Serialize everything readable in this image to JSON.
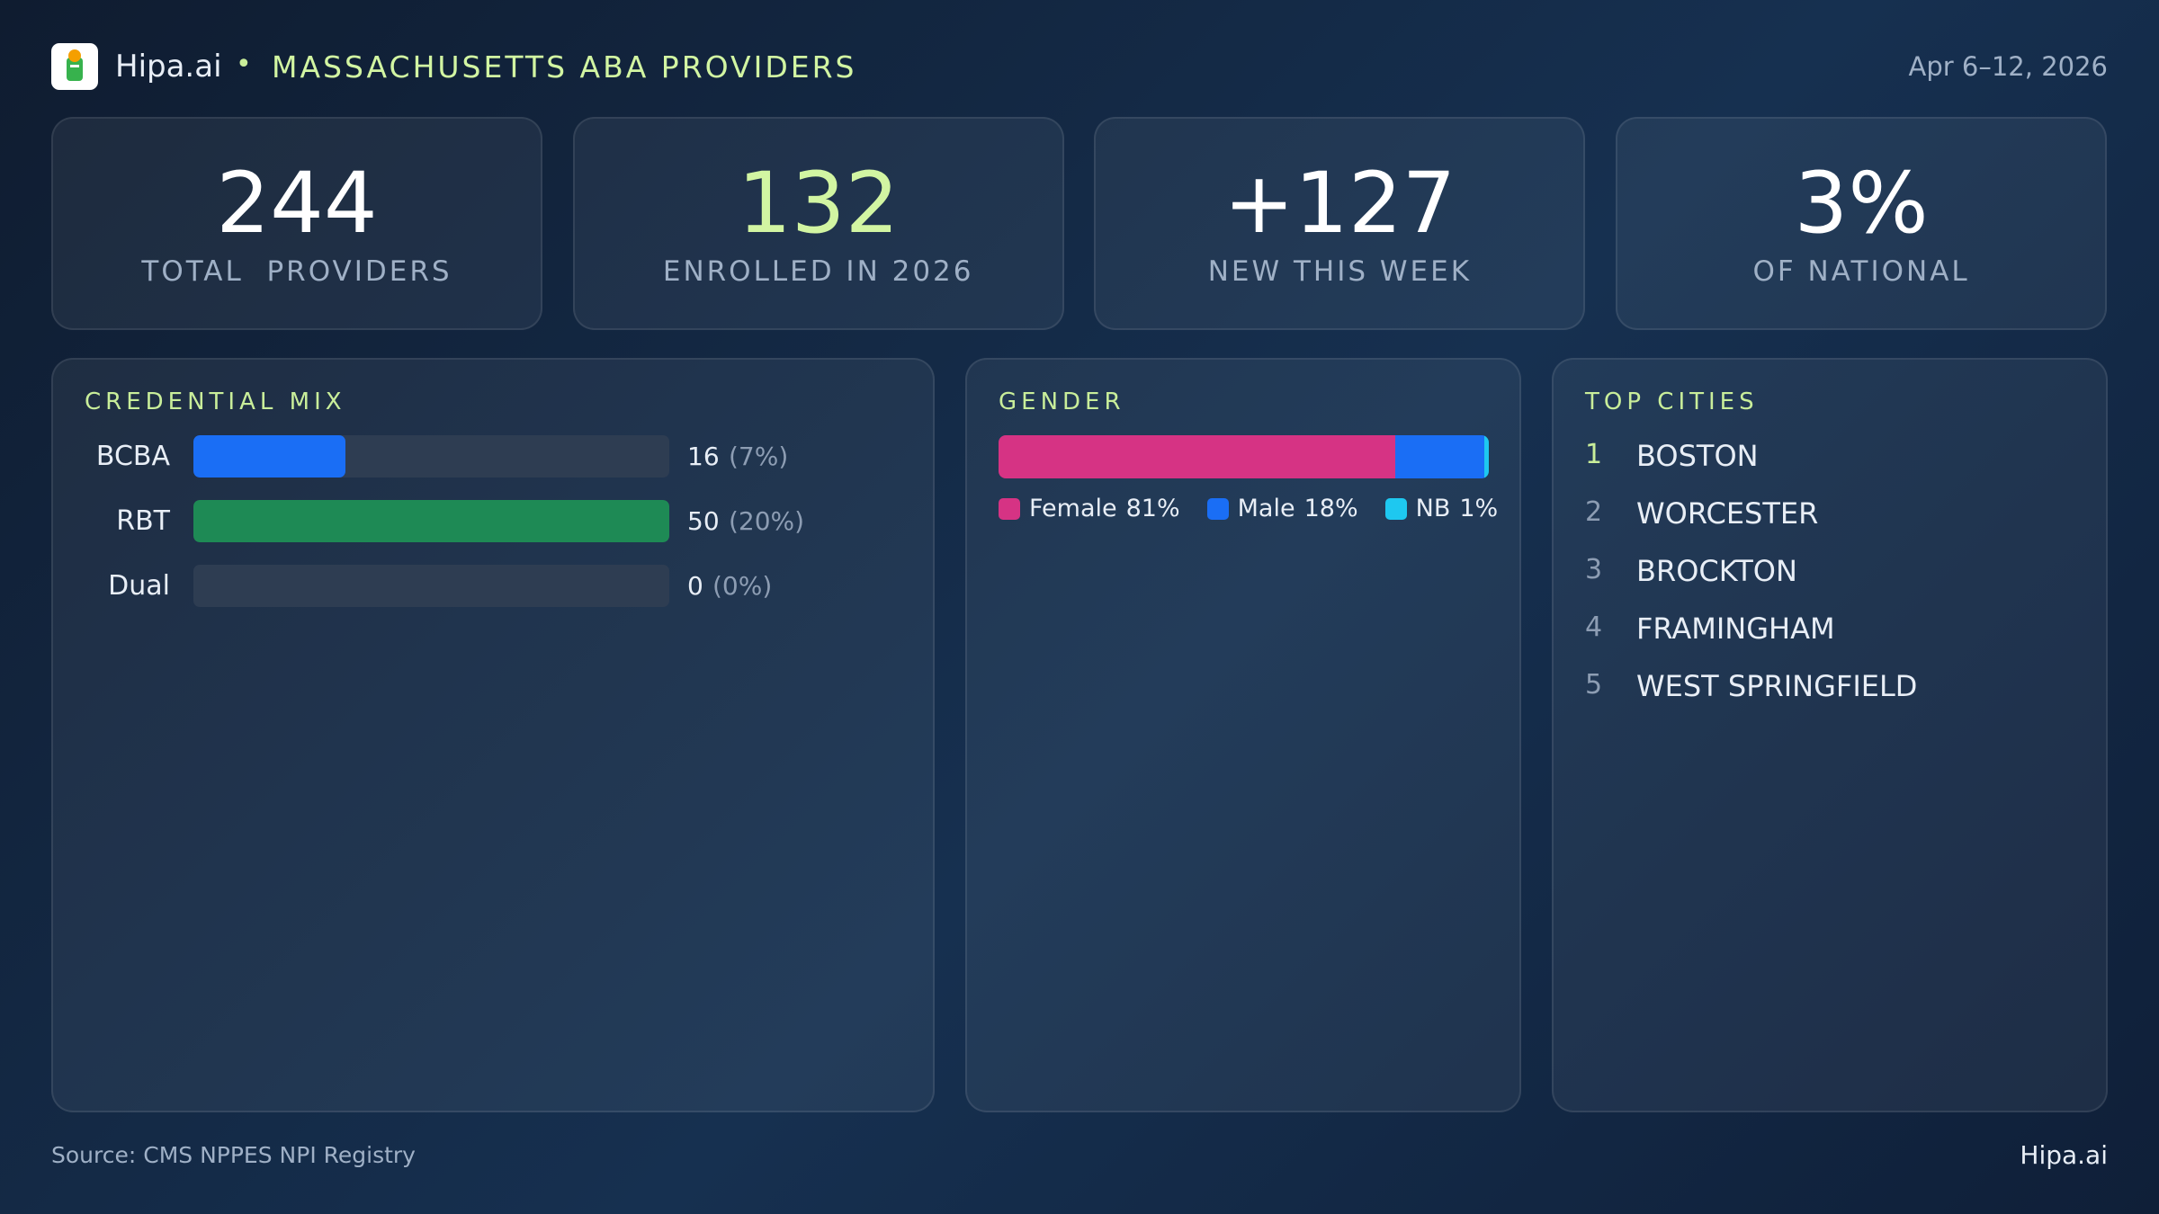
{
  "header": {
    "brand": "Hipa.ai",
    "bullet": "•",
    "title": "MASSACHUSETTS ABA PROVIDERS",
    "date": "Apr 6–12, 2026"
  },
  "stats": [
    {
      "value": "244",
      "label": "TOTAL  PROVIDERS",
      "color": "#ffffff"
    },
    {
      "value": "132",
      "label": "ENROLLED IN 2026",
      "color": "#d2f5a2"
    },
    {
      "value": "+127",
      "label": "NEW THIS WEEK",
      "color": "#ffffff"
    },
    {
      "value": "3%",
      "label": "OF NATIONAL",
      "color": "#ffffff"
    }
  ],
  "credential_mix": {
    "title": "CREDENTIAL MIX",
    "items": [
      {
        "label": "BCBA",
        "count": 16,
        "share_label": "(7%)",
        "color": "#1a6ef5"
      },
      {
        "label": "RBT",
        "count": 50,
        "share_label": "(20%)",
        "color": "#1e8a55"
      },
      {
        "label": "Dual",
        "count": 0,
        "share_label": "(0%)",
        "color": "#7a8aa0"
      }
    ]
  },
  "gender": {
    "title": "GENDER",
    "series": [
      {
        "name": "Female",
        "value": 81,
        "value_label": "81%",
        "color": "#d63384"
      },
      {
        "name": "Male",
        "value": 18,
        "value_label": "18%",
        "color": "#1a6ef5"
      },
      {
        "name": "NB",
        "value": 1,
        "value_label": "1%",
        "color": "#1ec8f0"
      }
    ]
  },
  "top_cities": {
    "title": "TOP CITIES",
    "items": [
      {
        "rank": "1",
        "name": "BOSTON"
      },
      {
        "rank": "2",
        "name": "WORCESTER"
      },
      {
        "rank": "3",
        "name": "BROCKTON"
      },
      {
        "rank": "4",
        "name": "FRAMINGHAM"
      },
      {
        "rank": "5",
        "name": "WEST SPRINGFIELD"
      }
    ]
  },
  "footer": {
    "source": "Source: CMS NPPES NPI Registry",
    "brand": "Hipa.ai"
  }
}
